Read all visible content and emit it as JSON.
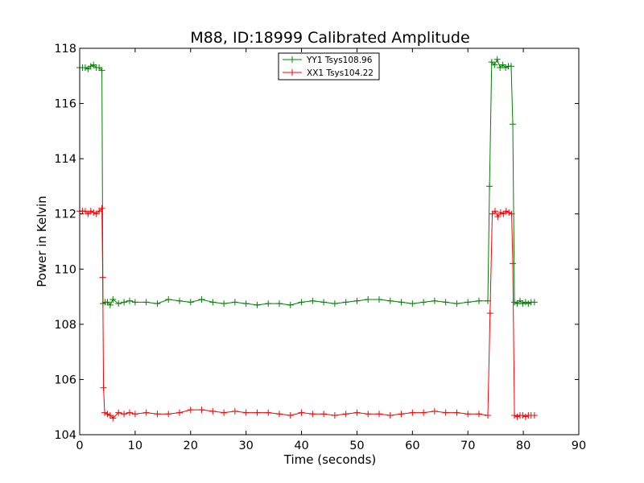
{
  "chart_data": {
    "type": "line",
    "title": "M88, ID:18999 Calibrated Amplitude",
    "xlabel": "Time (seconds)",
    "ylabel": "Power in Kelvin",
    "xlim": [
      0,
      90
    ],
    "ylim": [
      104,
      118
    ],
    "xticks": [
      0,
      10,
      20,
      30,
      40,
      50,
      60,
      70,
      80,
      90
    ],
    "yticks": [
      104,
      106,
      108,
      110,
      112,
      114,
      116,
      118
    ],
    "grid": false,
    "legend_position": "top-center",
    "marker": "+",
    "series": [
      {
        "name": "YY1 Tsys108.96",
        "color": "#008000",
        "x": [
          0.0,
          0.5,
          1.0,
          1.5,
          2.0,
          2.5,
          3.0,
          3.5,
          4.0,
          4.2,
          4.6,
          5.0,
          5.5,
          6.0,
          7.0,
          8.0,
          9.0,
          10.0,
          12.0,
          14.0,
          16.0,
          18.0,
          20.0,
          22.0,
          24.0,
          26.0,
          28.0,
          30.0,
          32.0,
          34.0,
          36.0,
          38.0,
          40.0,
          42.0,
          44.0,
          46.0,
          48.0,
          50.0,
          52.0,
          54.0,
          56.0,
          58.0,
          60.0,
          62.0,
          64.0,
          66.0,
          68.0,
          70.0,
          72.0,
          73.6,
          73.9,
          74.3,
          74.8,
          75.3,
          75.8,
          76.3,
          76.8,
          77.3,
          77.8,
          78.1,
          78.4,
          78.9,
          79.4,
          79.9,
          80.4,
          80.9,
          81.4,
          82.0
        ],
        "y": [
          117.3,
          117.3,
          117.3,
          117.25,
          117.35,
          117.4,
          117.3,
          117.3,
          117.2,
          108.75,
          108.8,
          108.8,
          108.7,
          108.9,
          108.75,
          108.8,
          108.85,
          108.8,
          108.8,
          108.75,
          108.9,
          108.85,
          108.8,
          108.9,
          108.8,
          108.75,
          108.8,
          108.75,
          108.7,
          108.75,
          108.75,
          108.7,
          108.8,
          108.85,
          108.8,
          108.75,
          108.8,
          108.85,
          108.9,
          108.9,
          108.85,
          108.8,
          108.75,
          108.8,
          108.85,
          108.8,
          108.75,
          108.8,
          108.85,
          108.85,
          113.0,
          117.5,
          117.4,
          117.6,
          117.3,
          117.4,
          117.3,
          117.35,
          117.35,
          115.25,
          108.8,
          108.75,
          108.85,
          108.75,
          108.8,
          108.75,
          108.8,
          108.8
        ]
      },
      {
        "name": "XX1 Tsys104.22",
        "color": "#ff0000",
        "x": [
          0.0,
          0.5,
          1.0,
          1.5,
          2.0,
          2.5,
          3.0,
          3.5,
          4.0,
          4.15,
          4.3,
          4.5,
          5.0,
          5.5,
          6.0,
          7.0,
          8.0,
          9.0,
          10.0,
          12.0,
          14.0,
          16.0,
          18.0,
          20.0,
          22.0,
          24.0,
          26.0,
          28.0,
          30.0,
          32.0,
          34.0,
          36.0,
          38.0,
          40.0,
          42.0,
          44.0,
          46.0,
          48.0,
          50.0,
          52.0,
          54.0,
          56.0,
          58.0,
          60.0,
          62.0,
          64.0,
          66.0,
          68.0,
          70.0,
          72.0,
          73.6,
          74.0,
          74.4,
          74.9,
          75.4,
          75.9,
          76.4,
          76.9,
          77.4,
          77.9,
          78.1,
          78.4,
          78.9,
          79.4,
          79.9,
          80.4,
          80.9,
          81.4,
          82.0
        ],
        "y": [
          112.1,
          112.1,
          112.1,
          112.0,
          112.1,
          112.05,
          112.0,
          112.1,
          112.2,
          109.7,
          105.7,
          104.8,
          104.75,
          104.7,
          104.6,
          104.8,
          104.75,
          104.8,
          104.75,
          104.8,
          104.75,
          104.75,
          104.8,
          104.9,
          104.9,
          104.85,
          104.8,
          104.85,
          104.8,
          104.8,
          104.8,
          104.75,
          104.7,
          104.8,
          104.75,
          104.75,
          104.7,
          104.75,
          104.8,
          104.75,
          104.75,
          104.7,
          104.75,
          104.8,
          104.8,
          104.85,
          104.8,
          104.8,
          104.75,
          104.75,
          104.7,
          108.4,
          112.0,
          112.1,
          111.9,
          112.05,
          112.0,
          112.1,
          112.05,
          112.0,
          110.2,
          104.7,
          104.65,
          104.7,
          104.7,
          104.65,
          104.7,
          104.7,
          104.7
        ]
      }
    ]
  }
}
